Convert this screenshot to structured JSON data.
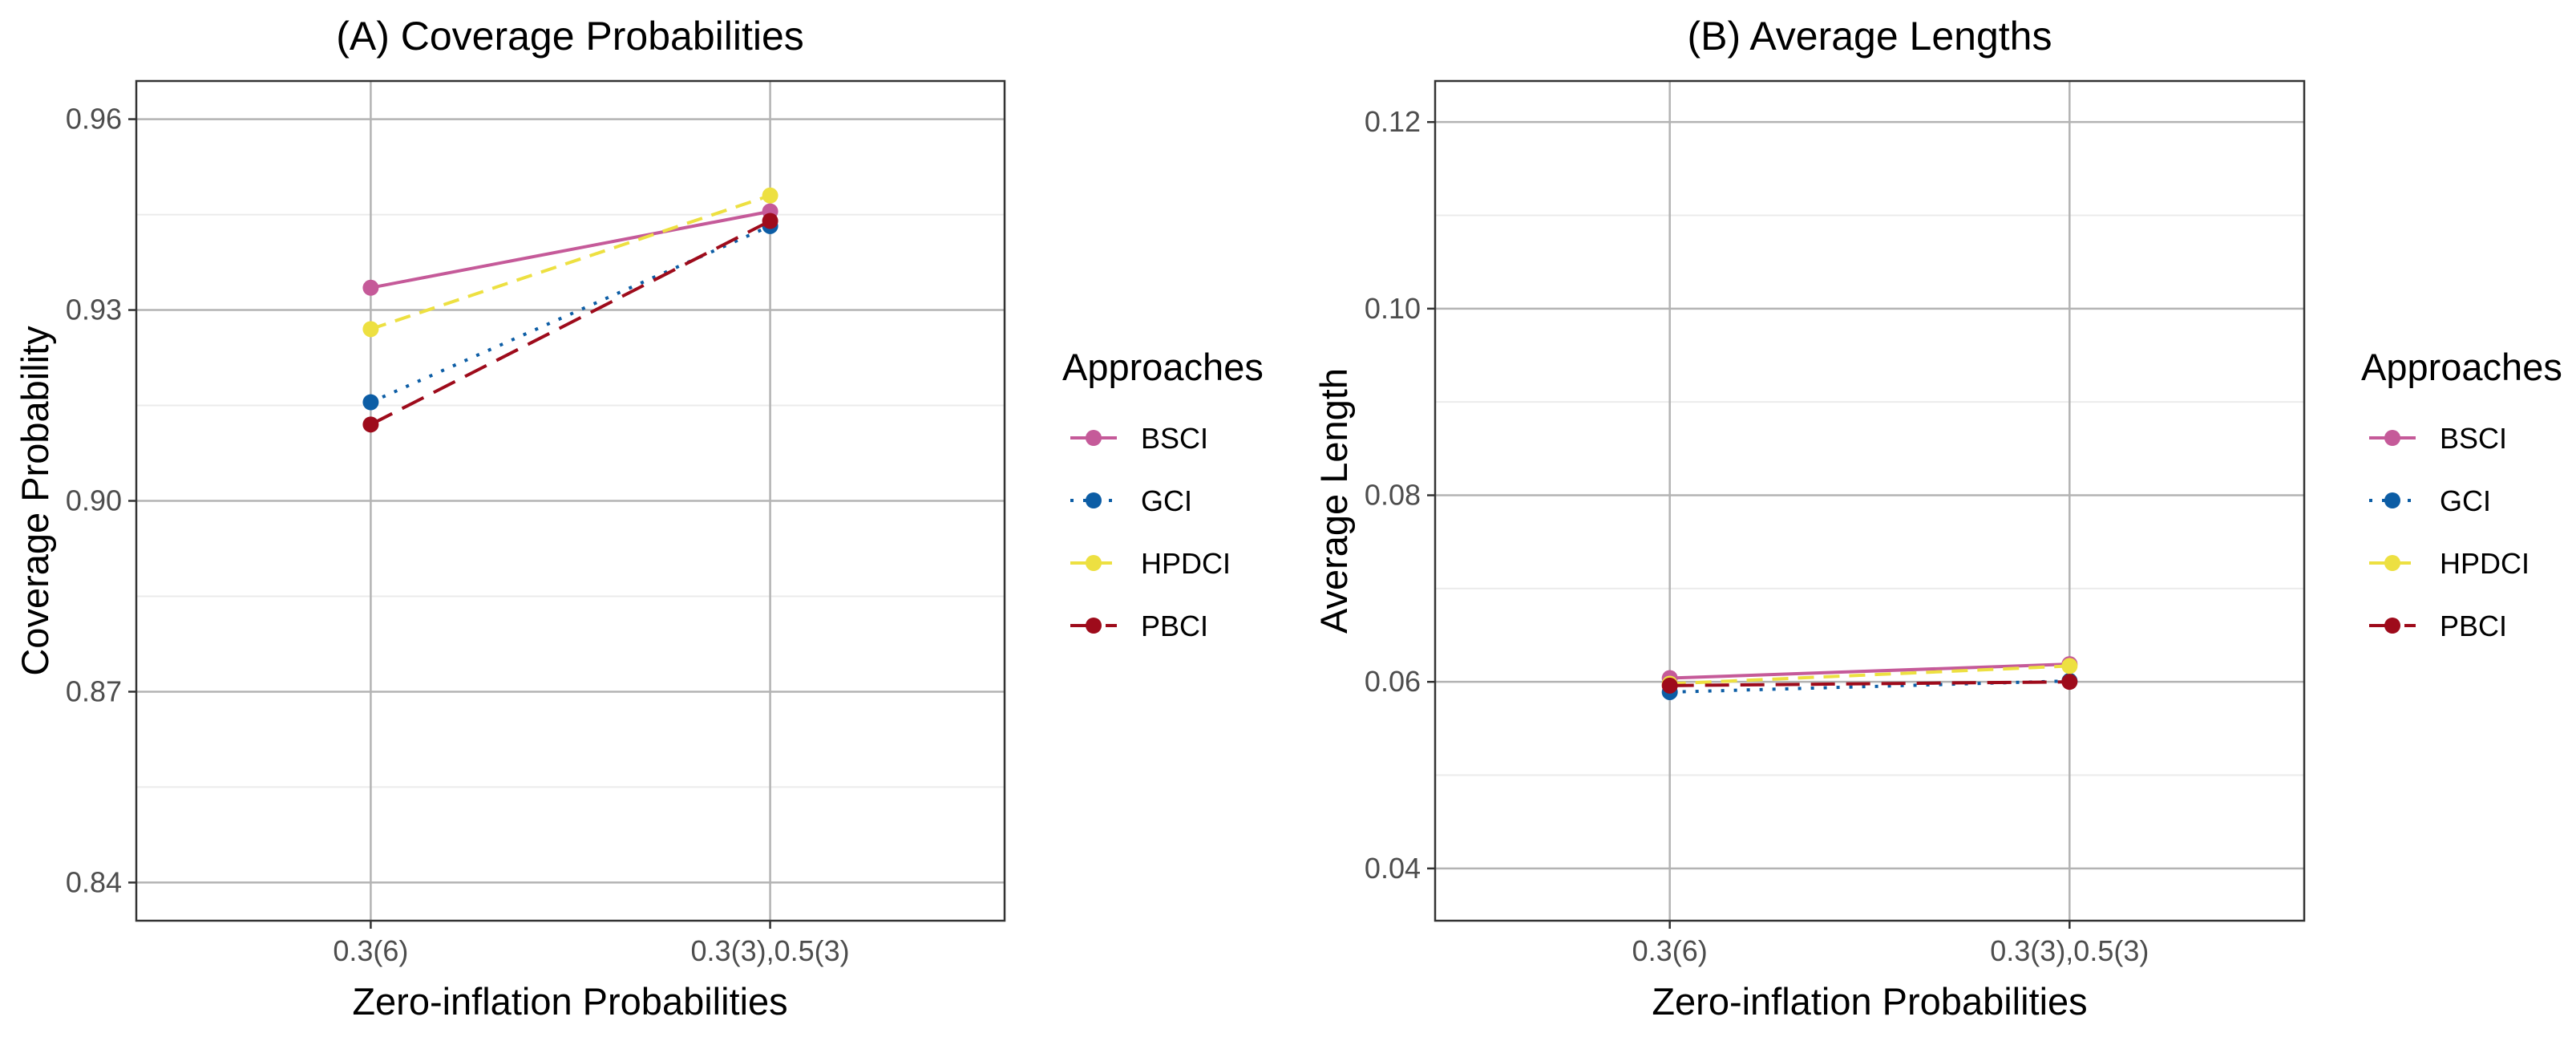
{
  "chart_data": [
    {
      "type": "line",
      "title": "(A) Coverage Probabilities",
      "xlabel": "Zero-inflation Probabilities",
      "ylabel": "Coverage Probability",
      "categories": [
        "0.3(6)",
        "0.3(3),0.5(3)"
      ],
      "ylim": [
        0.834,
        0.966
      ],
      "yticks": [
        0.84,
        0.87,
        0.9,
        0.93,
        0.96
      ],
      "ytick_labels": [
        "0.84",
        "0.87",
        "0.90",
        "0.93",
        "0.96"
      ],
      "grid": true,
      "legend_title": "Approaches",
      "legend_position": "right",
      "series": [
        {
          "name": "BSCI",
          "values": [
            0.9335,
            0.9455
          ],
          "color": "#c55a99",
          "dash": "solid"
        },
        {
          "name": "GCI",
          "values": [
            0.9155,
            0.9432
          ],
          "color": "#0c5da5",
          "dash": "dotted"
        },
        {
          "name": "HPDCI",
          "values": [
            0.927,
            0.948
          ],
          "color": "#ede041",
          "dash": "dashed"
        },
        {
          "name": "PBCI",
          "values": [
            0.912,
            0.944
          ],
          "color": "#9e0b1b",
          "dash": "longdash"
        }
      ]
    },
    {
      "type": "line",
      "title": "(B) Average Lengths",
      "xlabel": "Zero-inflation Probabilities",
      "ylabel": "Average Length",
      "categories": [
        "0.3(6)",
        "0.3(3),0.5(3)"
      ],
      "ylim": [
        0.0344,
        0.1244
      ],
      "yticks": [
        0.04,
        0.06,
        0.08,
        0.1,
        0.12
      ],
      "ytick_labels": [
        "0.04",
        "0.06",
        "0.08",
        "0.10",
        "0.12"
      ],
      "grid": true,
      "legend_title": "Approaches",
      "legend_position": "right",
      "series": [
        {
          "name": "BSCI",
          "values": [
            0.0604,
            0.0619
          ],
          "color": "#c55a99",
          "dash": "solid"
        },
        {
          "name": "GCI",
          "values": [
            0.0589,
            0.0601
          ],
          "color": "#0c5da5",
          "dash": "dotted"
        },
        {
          "name": "HPDCI",
          "values": [
            0.0598,
            0.0617
          ],
          "color": "#ede041",
          "dash": "dashed"
        },
        {
          "name": "PBCI",
          "values": [
            0.0596,
            0.06
          ],
          "color": "#9e0b1b",
          "dash": "longdash"
        }
      ]
    }
  ]
}
